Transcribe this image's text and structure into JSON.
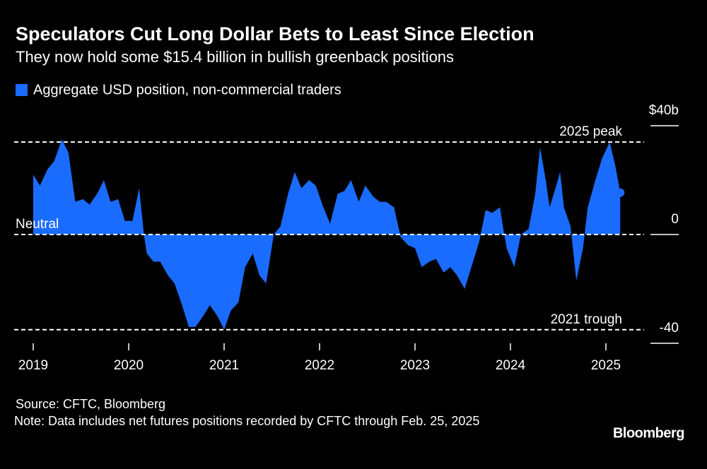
{
  "chart_data": {
    "type": "area",
    "title": "Speculators Cut Long Dollar Bets to Least Since Election",
    "subtitle": "They now hold some $15.4 billion in bullish greenback positions",
    "source": "Source: CFTC, Bloomberg",
    "note": "Note: Data includes net futures positions recorded by CFTC through Feb. 25, 2025",
    "logo": "Bloomberg",
    "x": [
      2019.0,
      2019.07,
      2019.15,
      2019.22,
      2019.3,
      2019.37,
      2019.44,
      2019.52,
      2019.59,
      2019.67,
      2019.74,
      2019.81,
      2019.89,
      2019.96,
      2020.04,
      2020.11,
      2020.16,
      2020.19,
      2020.26,
      2020.33,
      2020.41,
      2020.48,
      2020.56,
      2020.63,
      2020.7,
      2020.78,
      2020.85,
      2020.93,
      2021.0,
      2021.07,
      2021.15,
      2021.22,
      2021.3,
      2021.37,
      2021.44,
      2021.52,
      2021.59,
      2021.67,
      2021.74,
      2021.81,
      2021.89,
      2021.96,
      2022.04,
      2022.11,
      2022.19,
      2022.26,
      2022.33,
      2022.41,
      2022.48,
      2022.56,
      2022.63,
      2022.7,
      2022.78,
      2022.85,
      2022.93,
      2023.0,
      2023.07,
      2023.15,
      2023.22,
      2023.3,
      2023.37,
      2023.44,
      2023.52,
      2023.59,
      2023.67,
      2023.74,
      2023.81,
      2023.89,
      2023.93,
      2023.96,
      2024.04,
      2024.11,
      2024.19,
      2024.26,
      2024.31,
      2024.37,
      2024.41,
      2024.48,
      2024.52,
      2024.56,
      2024.63,
      2024.69,
      2024.76,
      2024.81,
      2024.89,
      2024.96,
      2025.04,
      2025.1,
      2025.15
    ],
    "series": [
      {
        "name": "Aggregate USD position, non-commercial traders",
        "color": "#1a6cff",
        "values": [
          22,
          18,
          24,
          27,
          35,
          30,
          12,
          13,
          11,
          15,
          20,
          12,
          13,
          5,
          5,
          17,
          0,
          -7,
          -10,
          -10,
          -15,
          -18,
          -26,
          -34,
          -34,
          -30,
          -26,
          -30,
          -35,
          -28,
          -25,
          -12,
          -7,
          -15,
          -18,
          0,
          3,
          15,
          23,
          17,
          20,
          18,
          10,
          4,
          15,
          16,
          20,
          12,
          18,
          14,
          12,
          12,
          10,
          -1,
          -4,
          -5,
          -12,
          -10,
          -9,
          -14,
          -12,
          -15,
          -20,
          -12,
          -3,
          9,
          8,
          10,
          1,
          -5,
          -12,
          0,
          2,
          15,
          32,
          20,
          10,
          18,
          23,
          10,
          3,
          -17,
          -5,
          10,
          20,
          28,
          34,
          25,
          15.4
        ]
      }
    ],
    "xlim": [
      2018.8,
      2025.4
    ],
    "xticks": [
      2019,
      2020,
      2021,
      2022,
      2023,
      2024,
      2025
    ],
    "ylim": [
      -40,
      40
    ],
    "yticks": [
      -40,
      0,
      {
        "value": 40,
        "label": "$40b"
      }
    ],
    "annotations": [
      {
        "text": "2025 peak",
        "value": 34
      },
      {
        "text": "2021 trough",
        "value": -35
      },
      {
        "text": "Neutral",
        "value": 0
      }
    ]
  }
}
